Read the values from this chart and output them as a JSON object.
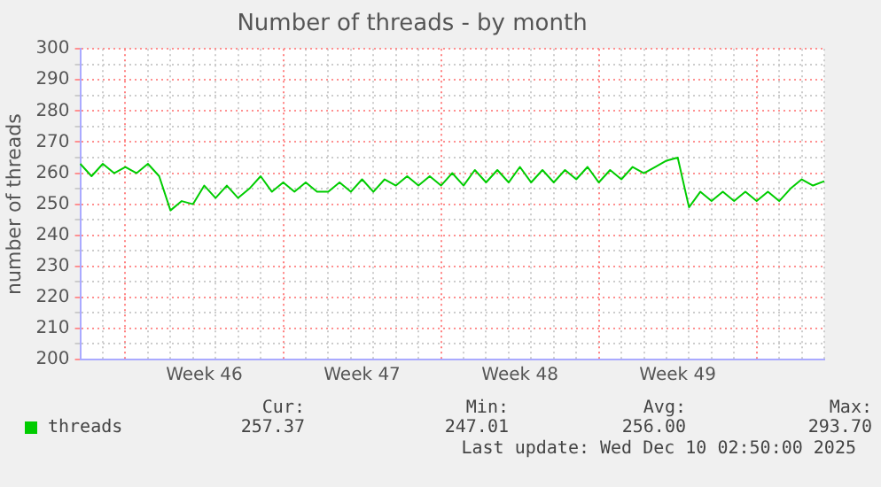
{
  "chart_data": {
    "type": "line",
    "title": "Number of threads - by month",
    "ylabel": "number of threads",
    "categories": [
      null,
      null,
      null,
      null,
      null,
      null,
      null,
      null,
      null,
      null,
      null,
      "Week 46",
      null,
      null,
      null,
      null,
      null,
      null,
      null,
      null,
      null,
      null,
      null,
      null,
      null,
      "Week 47",
      null,
      null,
      null,
      null,
      null,
      null,
      null,
      null,
      null,
      null,
      null,
      null,
      null,
      "Week 48",
      null,
      null,
      null,
      null,
      null,
      null,
      null,
      null,
      null,
      null,
      null,
      null,
      null,
      "Week 49",
      null,
      null,
      null,
      null,
      null,
      null,
      null,
      null,
      null,
      null,
      null,
      null,
      null
    ],
    "series": [
      {
        "name": "threads",
        "color": "#00cc00",
        "values": [
          263,
          259,
          263,
          260,
          262,
          260,
          263,
          259,
          248,
          251,
          250,
          256,
          252,
          256,
          252,
          255,
          259,
          254,
          257,
          254,
          257,
          254,
          254,
          257,
          254,
          258,
          254,
          258,
          256,
          259,
          256,
          259,
          256,
          260,
          256,
          261,
          257,
          261,
          257,
          262,
          257,
          261,
          257,
          261,
          258,
          262,
          257,
          261,
          258,
          262,
          260,
          262,
          264,
          265,
          249,
          254,
          251,
          254,
          251,
          254,
          251,
          254,
          251,
          255,
          258,
          256,
          257.4
        ]
      }
    ],
    "ylim": [
      200,
      300
    ],
    "yticks": [
      200,
      {
        "value": 205,
        "label": null
      },
      210,
      {
        "value": 215,
        "label": null
      },
      220,
      {
        "value": 225,
        "label": null
      },
      230,
      {
        "value": 235,
        "label": null
      },
      240,
      {
        "value": 245,
        "label": null
      },
      250,
      {
        "value": 255,
        "label": null
      },
      260,
      {
        "value": 265,
        "label": null
      },
      270,
      {
        "value": 275,
        "label": null
      },
      280,
      {
        "value": 285,
        "label": null
      },
      290,
      {
        "value": 295,
        "label": null
      },
      300
    ],
    "grid": true,
    "legend": "bottom left",
    "marker": "none",
    "line_style": "solid",
    "annotations": [
      "Cur:",
      "257.37",
      "Min:",
      "247.01",
      "Avg:",
      "256.00",
      "Max:",
      "293.70",
      "Last update: Wed Dec 10 02:50:00 2025"
    ]
  }
}
